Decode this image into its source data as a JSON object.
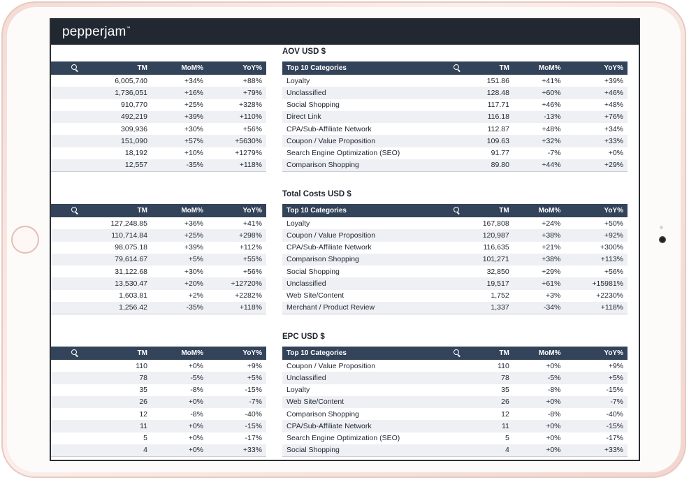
{
  "brand": {
    "logo_text": "pepperjam",
    "logo_mark": "™"
  },
  "sections": [
    {
      "title": "AOV  USD  $",
      "left_headers": [
        "TM",
        "MoM%",
        "YoY%"
      ],
      "right_headers": [
        "Top 10 Categories",
        "TM",
        "MoM%",
        "YoY%"
      ],
      "left_rows": [
        [
          "6,005,740",
          "+34%",
          "+88%"
        ],
        [
          "1,736,051",
          "+16%",
          "+79%"
        ],
        [
          "910,770",
          "+25%",
          "+328%"
        ],
        [
          "492,219",
          "+39%",
          "+110%"
        ],
        [
          "309,936",
          "+30%",
          "+56%"
        ],
        [
          "151,090",
          "+57%",
          "+5630%"
        ],
        [
          "18,192",
          "+10%",
          "+1279%"
        ],
        [
          "12,557",
          "-35%",
          "+118%"
        ]
      ],
      "right_rows": [
        [
          "Loyalty",
          "151.86",
          "+41%",
          "+39%"
        ],
        [
          "Unclassified",
          "128.48",
          "+60%",
          "+46%"
        ],
        [
          "Social Shopping",
          "117.71",
          "+46%",
          "+48%"
        ],
        [
          "Direct Link",
          "116.18",
          "-13%",
          "+76%"
        ],
        [
          "CPA/Sub-Affiliate Network",
          "112.87",
          "+48%",
          "+34%"
        ],
        [
          "Coupon / Value Proposition",
          "109.63",
          "+32%",
          "+33%"
        ],
        [
          "Search Engine Optimization (SEO)",
          "91.77",
          "-7%",
          "+0%"
        ],
        [
          "Comparison Shopping",
          "89.80",
          "+44%",
          "+29%"
        ]
      ]
    },
    {
      "title": "Total Costs  USD  $",
      "left_headers": [
        "TM",
        "MoM%",
        "YoY%"
      ],
      "right_headers": [
        "Top 10 Categories",
        "TM",
        "MoM%",
        "YoY%"
      ],
      "left_rows": [
        [
          "127,248.85",
          "+36%",
          "+41%"
        ],
        [
          "110,714.84",
          "+25%",
          "+298%"
        ],
        [
          "98,075.18",
          "+39%",
          "+112%"
        ],
        [
          "79,614.67",
          "+5%",
          "+55%"
        ],
        [
          "31,122.68",
          "+30%",
          "+56%"
        ],
        [
          "13,530.47",
          "+20%",
          "+12720%"
        ],
        [
          "1,603.81",
          "+2%",
          "+2282%"
        ],
        [
          "1,256.42",
          "-35%",
          "+118%"
        ]
      ],
      "right_rows": [
        [
          "Loyalty",
          "167,808",
          "+24%",
          "+50%"
        ],
        [
          "Coupon / Value Proposition",
          "120,987",
          "+38%",
          "+92%"
        ],
        [
          "CPA/Sub-Affiliate Network",
          "116,635",
          "+21%",
          "+300%"
        ],
        [
          "Comparison Shopping",
          "101,271",
          "+38%",
          "+113%"
        ],
        [
          "Social Shopping",
          "32,850",
          "+29%",
          "+56%"
        ],
        [
          "Unclassified",
          "19,517",
          "+61%",
          "+15981%"
        ],
        [
          "Web Site/Content",
          "1,752",
          "+3%",
          "+2230%"
        ],
        [
          "Merchant / Product Review",
          "1,337",
          "-34%",
          "+118%"
        ]
      ]
    },
    {
      "title": "EPC  USD  $",
      "left_headers": [
        "TM",
        "MoM%",
        "YoY%"
      ],
      "right_headers": [
        "Top 10 Categories",
        "TM",
        "MoM%",
        "YoY%"
      ],
      "left_rows": [
        [
          "110",
          "+0%",
          "+9%"
        ],
        [
          "78",
          "-5%",
          "+5%"
        ],
        [
          "35",
          "-8%",
          "-15%"
        ],
        [
          "26",
          "+0%",
          "-7%"
        ],
        [
          "12",
          "-8%",
          "-40%"
        ],
        [
          "11",
          "+0%",
          "-15%"
        ],
        [
          "5",
          "+0%",
          "-17%"
        ],
        [
          "4",
          "+0%",
          "+33%"
        ]
      ],
      "right_rows": [
        [
          "Coupon / Value Proposition",
          "110",
          "+0%",
          "+9%"
        ],
        [
          "Unclassified",
          "78",
          "-5%",
          "+5%"
        ],
        [
          "Loyalty",
          "35",
          "-8%",
          "-15%"
        ],
        [
          "Web Site/Content",
          "26",
          "+0%",
          "-7%"
        ],
        [
          "Comparison Shopping",
          "12",
          "-8%",
          "-40%"
        ],
        [
          "CPA/Sub-Affiliate Network",
          "11",
          "+0%",
          "-15%"
        ],
        [
          "Search Engine Optimization (SEO)",
          "5",
          "+0%",
          "-17%"
        ],
        [
          "Social Shopping",
          "4",
          "+0%",
          "+33%"
        ]
      ]
    }
  ],
  "colors": {
    "positive": "#22a05a",
    "negative": "#e0463c",
    "header_bg": "#334359",
    "topbar_bg": "#222831"
  }
}
